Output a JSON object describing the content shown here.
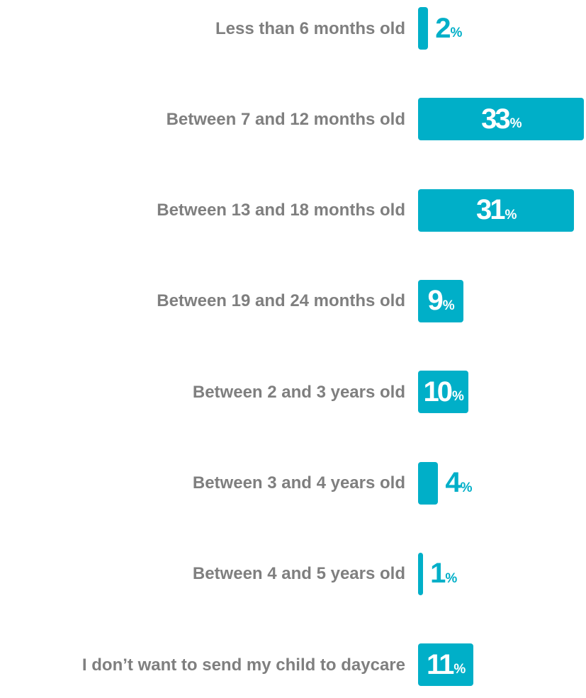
{
  "chart_data": {
    "type": "bar",
    "orientation": "horizontal",
    "categories": [
      "Less than 6 months old",
      "Between 7 and 12 months old",
      "Between 13 and 18 months old",
      "Between 19 and 24 months old",
      "Between 2 and 3 years old",
      "Between 3 and 4 years old",
      "Between 4 and 5 years old",
      "I don’t want to send my child to daycare"
    ],
    "values": [
      2,
      33,
      31,
      9,
      10,
      4,
      1,
      11
    ],
    "value_labels": [
      "2%",
      "33%",
      "31%",
      "9%",
      "10%",
      "4%",
      "1%",
      "11%"
    ],
    "color": "#00afc8"
  }
}
